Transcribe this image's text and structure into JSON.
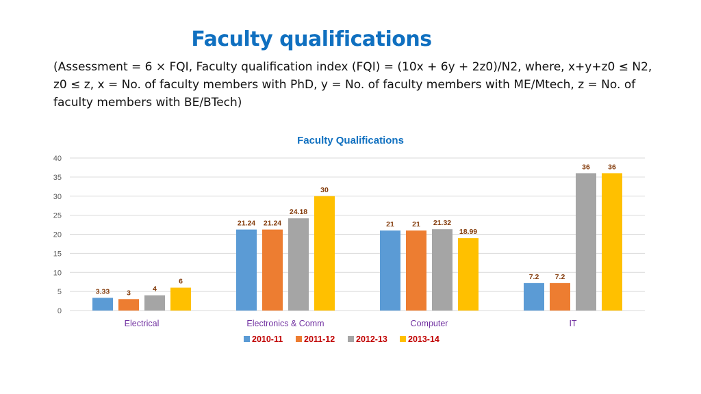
{
  "slide": {
    "title": "Faculty qualifications",
    "description": "(Assessment = 6 × FQI, Faculty qualification index (FQI) = (10x + 6y + 2z0)/N2, where, x+y+z0 ≤ N2, z0 ≤ z, x = No. of faculty members with PhD, y = No. of faculty members with ME/Mtech, z = No. of faculty members with BE/BTech)"
  },
  "chart_data": {
    "type": "bar",
    "title": "Faculty Qualifications",
    "categories": [
      "Electrical",
      "Electronics & Comm",
      "Computer",
      "IT"
    ],
    "series": [
      {
        "name": "2010-11",
        "color": "#5b9bd5",
        "values": [
          3.33,
          21.24,
          21,
          7.2
        ],
        "labels": [
          "3.33",
          "21.24",
          "21",
          "7.2"
        ]
      },
      {
        "name": "2011-12",
        "color": "#ed7d31",
        "values": [
          3,
          21.24,
          21,
          7.2
        ],
        "labels": [
          "3",
          "21.24",
          "21",
          "7.2"
        ]
      },
      {
        "name": "2012-13",
        "color": "#a5a5a5",
        "values": [
          4,
          24.18,
          21.32,
          36
        ],
        "labels": [
          "4",
          "24.18",
          "21.32",
          "36"
        ]
      },
      {
        "name": "2013-14",
        "color": "#ffc000",
        "values": [
          6,
          30,
          18.99,
          36
        ],
        "labels": [
          "6",
          "30",
          "18.99",
          "36"
        ]
      }
    ],
    "ylim": [
      0,
      40
    ],
    "yticks": [
      "0",
      "5",
      "10",
      "15",
      "20",
      "25",
      "30",
      "35",
      "40"
    ],
    "grid": true,
    "legend": "bottom",
    "colors": {
      "title": "#1070c0",
      "category_label": "#7030a0",
      "data_label": "#843c0c",
      "legend_text": "#c00000",
      "axis_text": "#595959",
      "grid": "#d9d9d9"
    }
  }
}
